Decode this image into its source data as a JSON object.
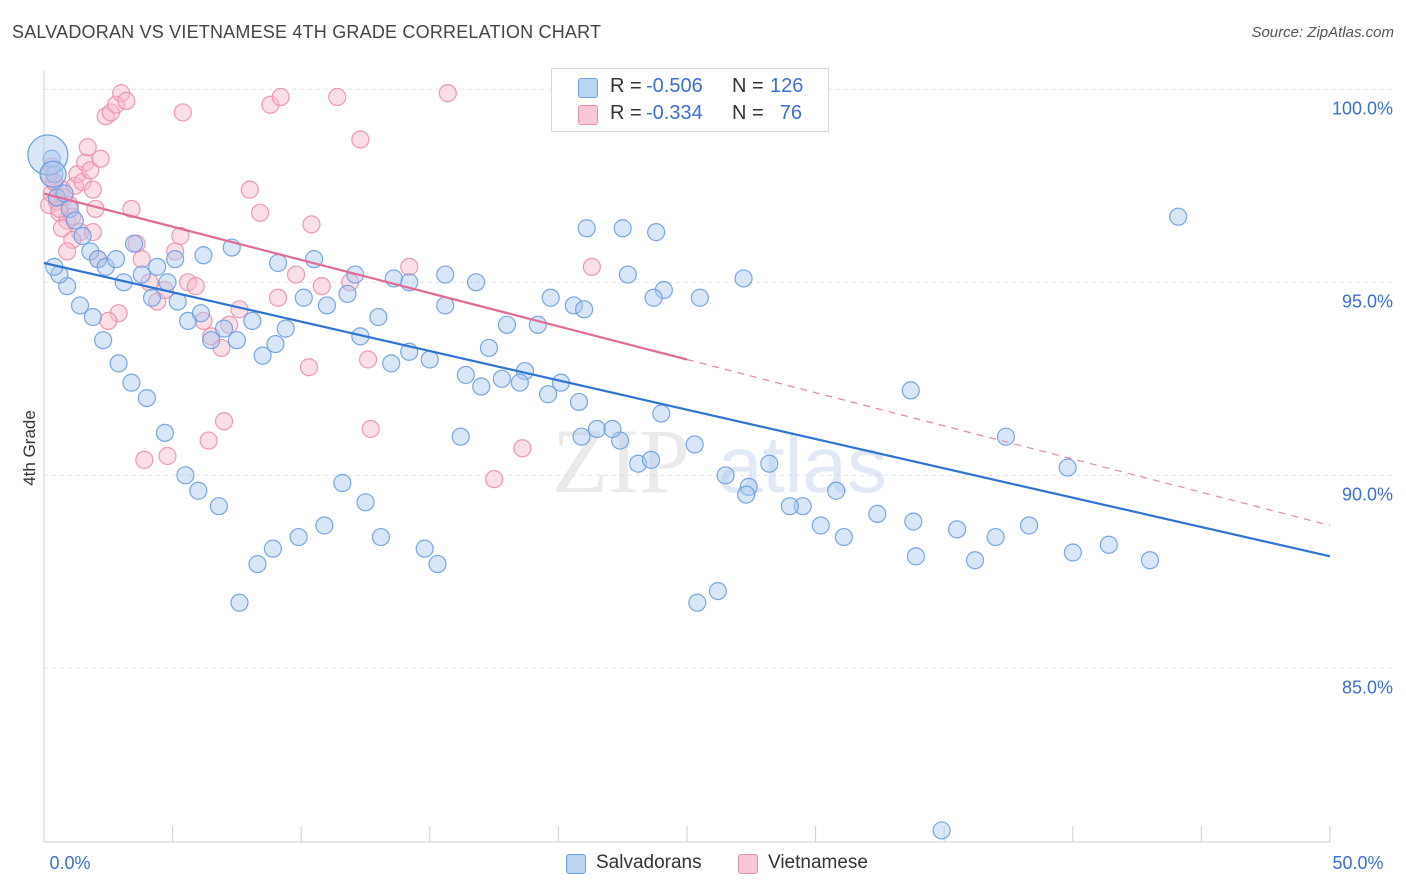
{
  "title": "SALVADORAN VS VIETNAMESE 4TH GRADE CORRELATION CHART",
  "source": "Source: ZipAtlas.com",
  "watermark": {
    "zip": "ZIP",
    "atlas": "atlas"
  },
  "colors": {
    "blue_fill": "#a9c8f0",
    "blue_stroke": "#6a9ee0",
    "blue_line": "#2f74d0",
    "pink_fill": "#f6b8ca",
    "pink_stroke": "#ec8fab",
    "pink_line": "#e06b93",
    "tick_text": "#3b6fd6",
    "grid": "#e2e2e2"
  },
  "legend": {
    "r_label": "R =",
    "n_label": "N =",
    "rows": [
      {
        "series": "Salvadorans",
        "r": "-0.506",
        "n": "126"
      },
      {
        "series": "Vietnamese",
        "r": "-0.334",
        "n": "76"
      }
    ]
  },
  "bottom_legend": [
    {
      "label": "Salvadorans"
    },
    {
      "label": "Vietnamese"
    }
  ],
  "chart_data": {
    "type": "scatter",
    "title": "SALVADORAN VS VIETNAMESE 4TH GRADE CORRELATION CHART",
    "xlabel": "",
    "ylabel": "4th Grade",
    "xlim": [
      0,
      50
    ],
    "ylim": [
      80.5,
      100.5
    ],
    "x_tick_labels": [
      "0.0%",
      "50.0%"
    ],
    "y_ticks": [
      85,
      90,
      95,
      100
    ],
    "y_tick_labels": [
      "85.0%",
      "90.0%",
      "95.0%",
      "100.0%"
    ],
    "grid": true,
    "legend_position": "top-center",
    "series": [
      {
        "name": "Salvadorans",
        "r": -0.506,
        "n": 126,
        "trend": {
          "x0": 0,
          "y0": 95.5,
          "x1": 50,
          "y1": 87.9
        },
        "points": [
          [
            0.3,
            98.2
          ],
          [
            0.4,
            97.8
          ],
          [
            0.5,
            97.2
          ],
          [
            0.8,
            97.3
          ],
          [
            1.0,
            96.9
          ],
          [
            1.2,
            96.6
          ],
          [
            1.5,
            96.2
          ],
          [
            1.8,
            95.8
          ],
          [
            2.1,
            95.6
          ],
          [
            2.4,
            95.4
          ],
          [
            2.8,
            95.6
          ],
          [
            3.1,
            95.0
          ],
          [
            3.5,
            96.0
          ],
          [
            3.8,
            95.2
          ],
          [
            4.2,
            94.6
          ],
          [
            4.8,
            95.0
          ],
          [
            5.2,
            94.5
          ],
          [
            5.6,
            94.0
          ],
          [
            6.1,
            94.2
          ],
          [
            6.5,
            93.5
          ],
          [
            7.0,
            93.8
          ],
          [
            7.5,
            93.5
          ],
          [
            8.1,
            94.0
          ],
          [
            8.5,
            93.1
          ],
          [
            9.0,
            93.4
          ],
          [
            9.4,
            93.8
          ],
          [
            10.1,
            94.6
          ],
          [
            10.5,
            95.6
          ],
          [
            11.0,
            94.4
          ],
          [
            11.8,
            94.7
          ],
          [
            12.3,
            93.6
          ],
          [
            13.0,
            94.1
          ],
          [
            13.5,
            92.9
          ],
          [
            14.2,
            93.2
          ],
          [
            15.0,
            93.0
          ],
          [
            15.6,
            94.4
          ],
          [
            16.4,
            92.6
          ],
          [
            17.0,
            92.3
          ],
          [
            17.8,
            92.5
          ],
          [
            18.7,
            92.7
          ],
          [
            20.1,
            92.4
          ],
          [
            20.8,
            91.9
          ],
          [
            21.5,
            91.2
          ],
          [
            22.4,
            90.9
          ],
          [
            23.1,
            90.3
          ],
          [
            24.0,
            91.6
          ],
          [
            25.3,
            90.8
          ],
          [
            26.5,
            90.0
          ],
          [
            27.4,
            89.7
          ],
          [
            28.2,
            90.3
          ],
          [
            29.5,
            89.2
          ],
          [
            30.8,
            89.6
          ],
          [
            32.4,
            89.0
          ],
          [
            33.8,
            88.8
          ],
          [
            35.5,
            88.6
          ],
          [
            37.0,
            88.4
          ],
          [
            38.3,
            88.7
          ],
          [
            40.0,
            88.0
          ],
          [
            41.4,
            88.2
          ],
          [
            43.0,
            87.8
          ],
          [
            44.1,
            96.7
          ],
          [
            39.8,
            90.2
          ],
          [
            36.2,
            87.8
          ],
          [
            33.9,
            87.9
          ],
          [
            31.1,
            88.4
          ],
          [
            30.2,
            88.7
          ],
          [
            29.0,
            89.2
          ],
          [
            27.3,
            89.5
          ],
          [
            26.2,
            87.0
          ],
          [
            25.4,
            86.7
          ],
          [
            23.6,
            90.4
          ],
          [
            22.1,
            91.2
          ],
          [
            20.9,
            91.0
          ],
          [
            19.6,
            92.1
          ],
          [
            18.5,
            92.4
          ],
          [
            17.3,
            93.3
          ],
          [
            16.2,
            91.0
          ],
          [
            15.3,
            87.7
          ],
          [
            14.8,
            88.1
          ],
          [
            13.1,
            88.4
          ],
          [
            12.5,
            89.3
          ],
          [
            11.6,
            89.8
          ],
          [
            10.9,
            88.7
          ],
          [
            9.9,
            88.4
          ],
          [
            8.9,
            88.1
          ],
          [
            8.3,
            87.7
          ],
          [
            7.6,
            86.7
          ],
          [
            6.8,
            89.2
          ],
          [
            6.0,
            89.6
          ],
          [
            5.5,
            90.0
          ],
          [
            4.7,
            91.1
          ],
          [
            4.0,
            92.0
          ],
          [
            3.4,
            92.4
          ],
          [
            2.9,
            92.9
          ],
          [
            2.3,
            93.5
          ],
          [
            1.9,
            94.1
          ],
          [
            1.4,
            94.4
          ],
          [
            0.9,
            94.9
          ],
          [
            0.6,
            95.2
          ],
          [
            0.4,
            95.4
          ],
          [
            21.1,
            96.4
          ],
          [
            22.5,
            96.4
          ],
          [
            23.8,
            96.3
          ],
          [
            22.7,
            95.2
          ],
          [
            24.1,
            94.8
          ],
          [
            23.7,
            94.6
          ],
          [
            25.5,
            94.6
          ],
          [
            20.6,
            94.4
          ],
          [
            21.0,
            94.3
          ],
          [
            19.7,
            94.6
          ],
          [
            19.2,
            93.9
          ],
          [
            18.0,
            93.9
          ],
          [
            16.8,
            95.0
          ],
          [
            15.6,
            95.2
          ],
          [
            14.2,
            95.0
          ],
          [
            13.6,
            95.1
          ],
          [
            12.1,
            95.2
          ],
          [
            9.1,
            95.5
          ],
          [
            7.3,
            95.9
          ],
          [
            6.2,
            95.7
          ],
          [
            5.1,
            95.6
          ],
          [
            4.4,
            95.4
          ],
          [
            27.2,
            95.1
          ],
          [
            34.9,
            80.8
          ],
          [
            33.7,
            92.2
          ],
          [
            37.4,
            91.0
          ]
        ]
      },
      {
        "name": "Vietnamese",
        "r": -0.334,
        "n": 76,
        "trend_solid": {
          "x0": 0,
          "y0": 97.3,
          "x1": 25,
          "y1": 93.0
        },
        "trend_dashed": {
          "x0": 25,
          "y0": 93.0,
          "x1": 50,
          "y1": 88.7
        },
        "points": [
          [
            0.2,
            97.0
          ],
          [
            0.3,
            97.3
          ],
          [
            0.4,
            97.6
          ],
          [
            0.5,
            97.1
          ],
          [
            0.6,
            96.8
          ],
          [
            0.7,
            97.4
          ],
          [
            0.8,
            97.2
          ],
          [
            0.9,
            96.6
          ],
          [
            1.0,
            97.0
          ],
          [
            1.1,
            96.7
          ],
          [
            1.2,
            97.5
          ],
          [
            1.3,
            97.8
          ],
          [
            1.4,
            96.3
          ],
          [
            1.5,
            97.6
          ],
          [
            1.6,
            98.1
          ],
          [
            1.7,
            98.5
          ],
          [
            1.8,
            97.9
          ],
          [
            1.9,
            97.4
          ],
          [
            2.0,
            96.9
          ],
          [
            2.2,
            98.2
          ],
          [
            2.4,
            99.3
          ],
          [
            2.6,
            99.4
          ],
          [
            2.8,
            99.6
          ],
          [
            3.0,
            99.9
          ],
          [
            3.2,
            99.7
          ],
          [
            3.4,
            96.9
          ],
          [
            3.6,
            96.0
          ],
          [
            3.8,
            95.6
          ],
          [
            4.1,
            95.0
          ],
          [
            4.4,
            94.5
          ],
          [
            4.7,
            94.8
          ],
          [
            5.1,
            95.8
          ],
          [
            5.3,
            96.2
          ],
          [
            5.6,
            95.0
          ],
          [
            5.9,
            94.9
          ],
          [
            6.2,
            94.0
          ],
          [
            6.5,
            93.6
          ],
          [
            6.9,
            93.3
          ],
          [
            7.2,
            93.9
          ],
          [
            7.6,
            94.3
          ],
          [
            8.0,
            97.4
          ],
          [
            8.4,
            96.8
          ],
          [
            8.8,
            99.6
          ],
          [
            9.2,
            99.8
          ],
          [
            9.8,
            95.2
          ],
          [
            10.4,
            96.5
          ],
          [
            10.8,
            94.9
          ],
          [
            11.4,
            99.8
          ],
          [
            11.9,
            95.0
          ],
          [
            12.6,
            93.0
          ],
          [
            12.3,
            98.7
          ],
          [
            15.7,
            99.9
          ],
          [
            14.2,
            95.4
          ],
          [
            12.7,
            91.2
          ],
          [
            10.3,
            92.8
          ],
          [
            9.1,
            94.6
          ],
          [
            7.0,
            91.4
          ],
          [
            6.4,
            90.9
          ],
          [
            4.8,
            90.5
          ],
          [
            3.9,
            90.4
          ],
          [
            2.9,
            94.2
          ],
          [
            2.5,
            94.0
          ],
          [
            2.1,
            95.6
          ],
          [
            1.9,
            96.3
          ],
          [
            1.1,
            96.1
          ],
          [
            0.9,
            95.8
          ],
          [
            0.7,
            96.4
          ],
          [
            0.6,
            96.9
          ],
          [
            0.5,
            97.2
          ],
          [
            0.4,
            97.6
          ],
          [
            0.3,
            98.0
          ],
          [
            0.2,
            97.8
          ],
          [
            21.3,
            95.4
          ],
          [
            17.5,
            89.9
          ],
          [
            18.6,
            90.7
          ],
          [
            5.4,
            99.4
          ]
        ]
      }
    ]
  }
}
